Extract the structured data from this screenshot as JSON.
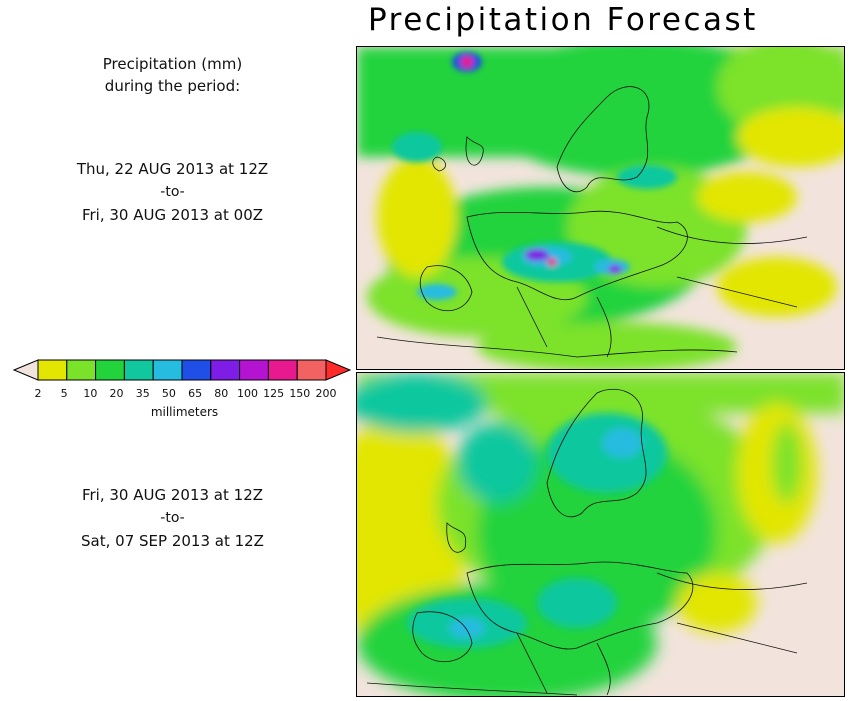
{
  "title": "Precipitation Forecast",
  "header": {
    "line1": "Precipitation (mm)",
    "line2": "during the period:"
  },
  "periods": [
    {
      "start": "Thu, 22 AUG 2013 at 12Z",
      "separator": "-to-",
      "end": "Fri, 30 AUG 2013 at 00Z"
    },
    {
      "start": "Fri, 30 AUG 2013 at 12Z",
      "separator": "-to-",
      "end": "Sat, 07 SEP 2013 at 12Z"
    }
  ],
  "legend": {
    "unit": "millimeters",
    "ticks": [
      "2",
      "5",
      "10",
      "20",
      "35",
      "50",
      "65",
      "80",
      "100",
      "125",
      "150",
      "200"
    ],
    "colors": [
      "#f1e4dc",
      "#e2e600",
      "#7be22a",
      "#22d33c",
      "#10c79e",
      "#26bce0",
      "#1f4fe6",
      "#7e1de5",
      "#b414d2",
      "#e8188f",
      "#f26262",
      "#ff2a2a"
    ]
  },
  "map_colors": {
    "land": "#f2e4dc",
    "border": "#111111"
  }
}
